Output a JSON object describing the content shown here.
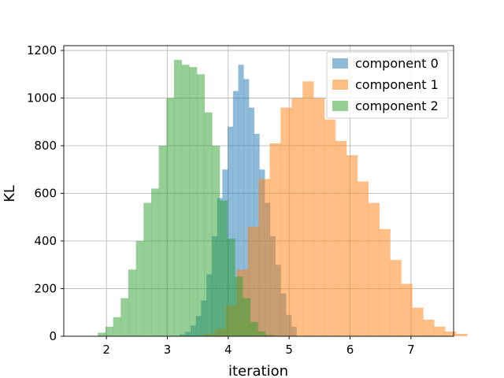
{
  "chart_data": {
    "type": "bar",
    "subtype": "histogram",
    "title": "",
    "xlabel": "iteration",
    "ylabel": "KL",
    "xlim": [
      1.3,
      7.7
    ],
    "ylim": [
      0,
      1220
    ],
    "xticks": [
      2,
      3,
      4,
      5,
      6,
      7
    ],
    "yticks": [
      0,
      200,
      400,
      600,
      800,
      1000,
      1200
    ],
    "grid": true,
    "legend_position": "top-right",
    "bar_alpha": 0.5,
    "series": [
      {
        "name": "component 0",
        "color": "#1f77b4",
        "bin_start": 3.12,
        "bin_width": 0.087,
        "values": [
          2,
          8,
          18,
          45,
          85,
          150,
          260,
          420,
          580,
          700,
          880,
          1030,
          1140,
          1080,
          960,
          850,
          700,
          560,
          420,
          300,
          180,
          90,
          40
        ]
      },
      {
        "name": "component 1",
        "color": "#ff7f0e",
        "bin_start": 3.6,
        "bin_width": 0.18,
        "values": [
          10,
          30,
          130,
          280,
          460,
          660,
          810,
          960,
          1000,
          1070,
          1000,
          910,
          820,
          760,
          650,
          560,
          450,
          320,
          220,
          120,
          70,
          40,
          20,
          10
        ]
      },
      {
        "name": "component 2",
        "color": "#2ca02c",
        "bin_start": 1.86,
        "bin_width": 0.125,
        "values": [
          15,
          40,
          80,
          160,
          280,
          400,
          560,
          620,
          800,
          1000,
          1160,
          1140,
          1130,
          1100,
          940,
          800,
          570,
          410,
          250,
          160,
          60,
          20,
          5,
          2
        ]
      }
    ]
  }
}
